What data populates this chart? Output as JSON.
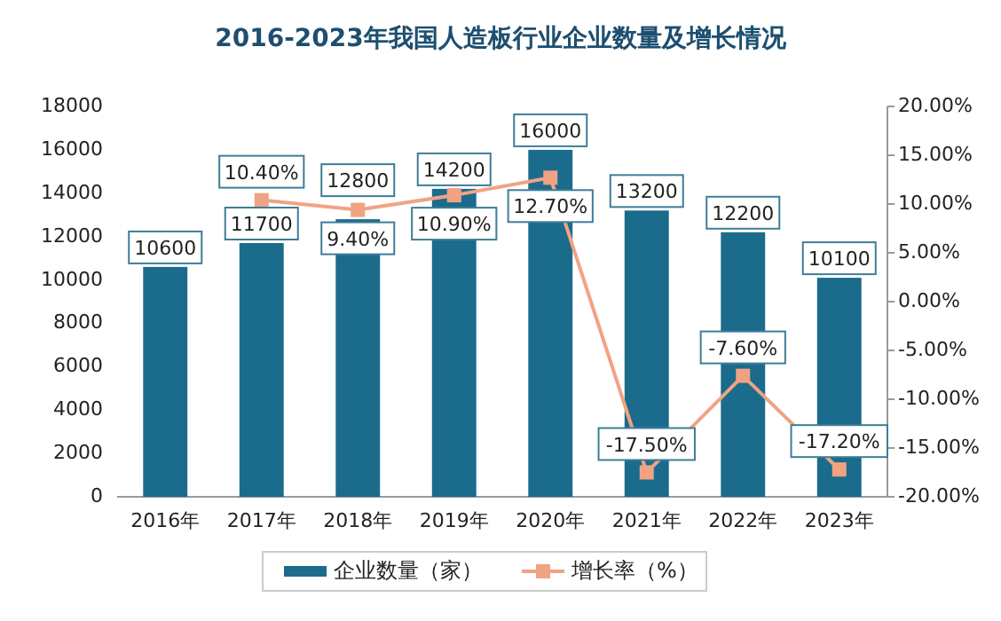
{
  "chart_data": {
    "type": "bar",
    "title": "2016-2023年我国人造板行业企业数量及增长情况",
    "categories": [
      "2016年",
      "2017年",
      "2018年",
      "2019年",
      "2020年",
      "2021年",
      "2022年",
      "2023年"
    ],
    "series": [
      {
        "name": "企业数量（家）",
        "color": "#1b6b8c",
        "values": [
          10600,
          11700,
          12800,
          14200,
          16000,
          13200,
          12200,
          10100
        ],
        "data_labels": true
      },
      {
        "name": "增长率（%）",
        "type": "line",
        "axis": "y2",
        "color": "#f0a383",
        "marker": "square",
        "values": [
          null,
          10.4,
          9.4,
          10.9,
          12.7,
          -17.5,
          -7.6,
          -17.2
        ],
        "value_labels": [
          null,
          "10.40%",
          "9.40%",
          "10.90%",
          "12.70%",
          "-17.50%",
          "-7.60%",
          "-17.20%"
        ]
      }
    ],
    "ylim": [
      0,
      18000
    ],
    "yticks": [
      0,
      2000,
      4000,
      6000,
      8000,
      10000,
      12000,
      14000,
      16000,
      18000
    ],
    "y2lim": [
      -20,
      20
    ],
    "y2ticks": [
      {
        "value": -20,
        "label": "-20.00%"
      },
      {
        "value": -15,
        "label": "-15.00%"
      },
      {
        "value": -10,
        "label": "-10.00%"
      },
      {
        "value": -5,
        "label": "-5.00%"
      },
      {
        "value": 0,
        "label": "0.00%"
      },
      {
        "value": 5,
        "label": "5.00%"
      },
      {
        "value": 10,
        "label": "10.00%"
      },
      {
        "value": 15,
        "label": "15.00%"
      },
      {
        "value": 20,
        "label": "20.00%"
      }
    ],
    "grid": false,
    "legend": "bottom"
  }
}
